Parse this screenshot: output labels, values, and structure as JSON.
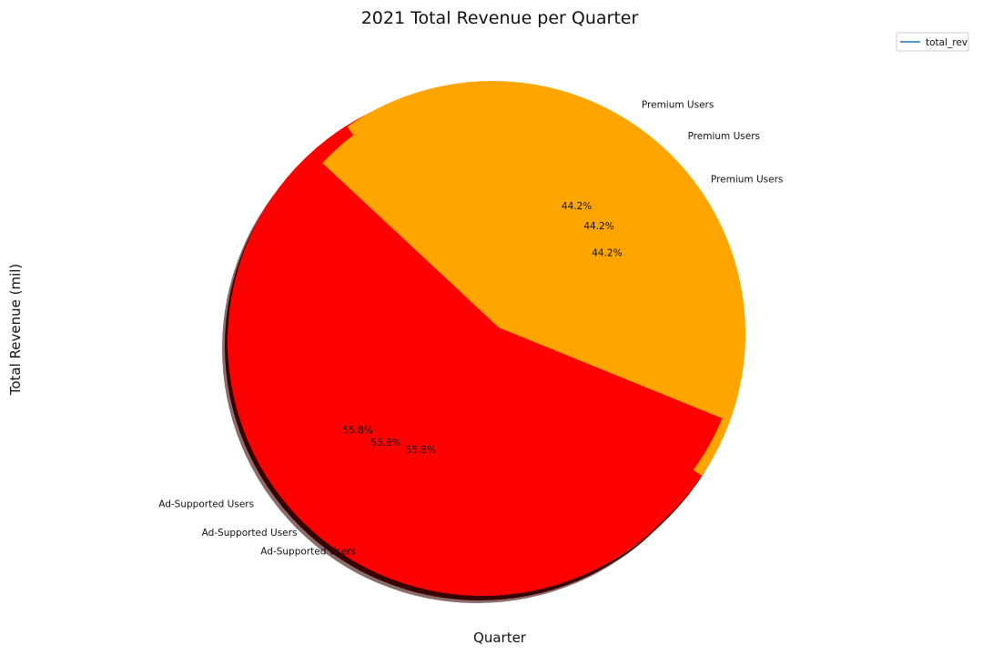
{
  "chart_data": {
    "type": "pie",
    "title": "2021 Total Revenue per Quarter",
    "xlabel": "Quarter",
    "ylabel": "Total Revenue (mil)",
    "legend": {
      "position": "top-right",
      "entries": [
        "total_rev"
      ],
      "line_color": "#1f77b4"
    },
    "series": [
      {
        "slices": [
          {
            "label": "Ad-Supported Users",
            "percent": 55.8,
            "percent_text": "55.8%",
            "color": "#ff0000"
          },
          {
            "label": "Premium Users",
            "percent": 44.2,
            "percent_text": "44.2%",
            "color": "#ffa500"
          }
        ]
      },
      {
        "slices": [
          {
            "label": "Ad-Supported Users",
            "percent": 55.8,
            "percent_text": "55.8%",
            "color": "#ff0000"
          },
          {
            "label": "Premium Users",
            "percent": 44.2,
            "percent_text": "44.2%",
            "color": "#ffa500"
          }
        ]
      },
      {
        "slices": [
          {
            "label": "Ad-Supported Users",
            "percent": 55.8,
            "percent_text": "55.8%",
            "color": "#ff0000"
          },
          {
            "label": "Premium Users",
            "percent": 44.2,
            "percent_text": "44.2%",
            "color": "#ffa500"
          }
        ]
      }
    ],
    "shadow": true,
    "shadow_color": "#8b6b6b"
  }
}
